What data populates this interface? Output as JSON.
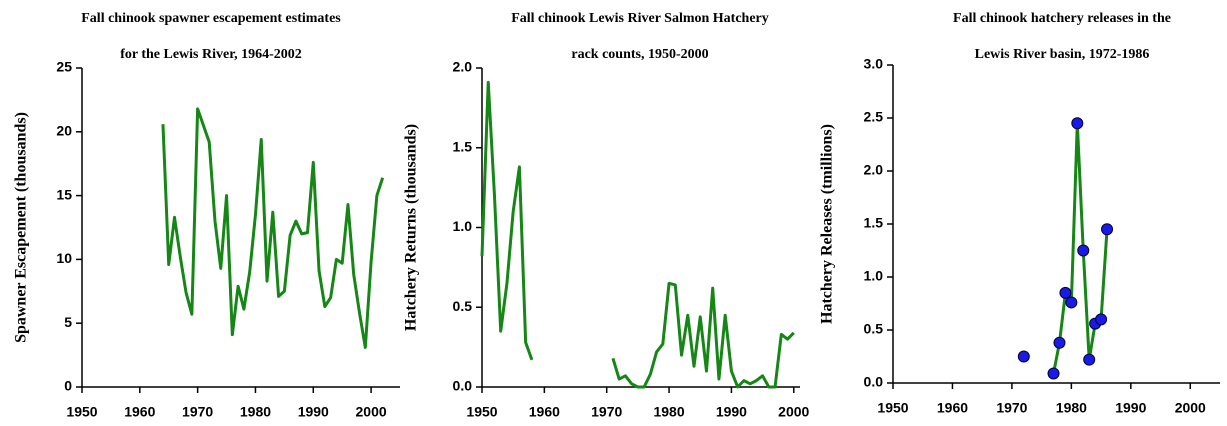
{
  "chart_data": [
    {
      "type": "line",
      "title": [
        "Fall chinook spawner escapement estimates",
        "for the Lewis River, 1964-2002"
      ],
      "ylabel": "Spawner Escapement (thousands)",
      "x": [
        1964,
        1965,
        1966,
        1967,
        1968,
        1969,
        1970,
        1971,
        1972,
        1973,
        1974,
        1975,
        1976,
        1977,
        1978,
        1979,
        1980,
        1981,
        1982,
        1983,
        1984,
        1985,
        1986,
        1987,
        1988,
        1989,
        1990,
        1991,
        1992,
        1993,
        1994,
        1995,
        1996,
        1997,
        1998,
        1999,
        2000,
        2001,
        2002
      ],
      "series": [
        {
          "color": "#168616",
          "values": [
            20.6,
            9.6,
            13.3,
            10.2,
            7.4,
            5.7,
            21.8,
            20.5,
            19.2,
            13.0,
            9.3,
            15.0,
            4.1,
            7.9,
            6.1,
            9.0,
            13.5,
            19.4,
            8.3,
            13.7,
            7.1,
            7.5,
            11.9,
            13.0,
            12.0,
            12.1,
            17.6,
            9.1,
            6.3,
            7.0,
            10.0,
            9.7,
            14.3,
            8.8,
            5.8,
            3.1,
            9.8,
            15.0,
            16.4
          ]
        }
      ],
      "xlim": [
        1950,
        2005
      ],
      "xticks": [
        1950,
        1960,
        1970,
        1980,
        1990,
        2000
      ],
      "ylim": [
        0,
        25
      ],
      "yticks": [
        0,
        5,
        10,
        15,
        20,
        25
      ]
    },
    {
      "type": "line",
      "title": [
        "Fall chinook Lewis River Salmon Hatchery",
        "rack counts, 1950-2000"
      ],
      "ylabel": "Hatchery Returns (thousands)",
      "x": [
        1950,
        1951,
        1952,
        1953,
        1954,
        1955,
        1956,
        1957,
        1958,
        1959,
        1960,
        1961,
        1962,
        1963,
        1964,
        1965,
        1966,
        1967,
        1968,
        1969,
        1970,
        1971,
        1972,
        1973,
        1974,
        1975,
        1976,
        1977,
        1978,
        1979,
        1980,
        1981,
        1982,
        1983,
        1984,
        1985,
        1986,
        1987,
        1988,
        1989,
        1990,
        1991,
        1992,
        1993,
        1994,
        1995,
        1996,
        1997,
        1998,
        1999,
        2000
      ],
      "series": [
        {
          "color": "#168616",
          "values": [
            0.82,
            1.91,
            1.2,
            0.35,
            0.65,
            1.1,
            1.38,
            0.28,
            0.17,
            null,
            null,
            null,
            null,
            null,
            null,
            null,
            null,
            null,
            null,
            null,
            null,
            0.18,
            0.05,
            0.07,
            0.02,
            0.0,
            0.0,
            0.08,
            0.22,
            0.27,
            0.65,
            0.64,
            0.2,
            0.45,
            0.13,
            0.44,
            0.1,
            0.62,
            0.05,
            0.45,
            0.1,
            0.0,
            0.04,
            0.02,
            0.04,
            0.07,
            0.0,
            0.0,
            0.33,
            0.3,
            0.34
          ]
        }
      ],
      "xlim": [
        1950,
        2001
      ],
      "xticks": [
        1950,
        1960,
        1970,
        1980,
        1990,
        2000
      ],
      "ylim": [
        0,
        2
      ],
      "yticks": [
        {
          "value": 0,
          "label": "0.0"
        },
        0.5,
        {
          "value": 1,
          "label": "1.0"
        },
        1.5,
        {
          "value": 2,
          "label": "2.0"
        }
      ]
    },
    {
      "type": "line",
      "title": [
        "Fall chinook hatchery releases in the",
        "Lewis River basin, 1972-1986"
      ],
      "ylabel": "Hatchery Releases (tmillions)",
      "x": [
        1972,
        1973,
        1974,
        1975,
        1976,
        1977,
        1978,
        1979,
        1980,
        1981,
        1982,
        1983,
        1984,
        1985,
        1986
      ],
      "series": [
        {
          "color": "#168616",
          "marker_color": "#1a1ae8",
          "values": [
            0.25,
            null,
            null,
            null,
            null,
            0.09,
            0.38,
            0.85,
            0.76,
            2.45,
            1.25,
            0.22,
            0.56,
            0.6,
            1.45
          ]
        }
      ],
      "markers": true,
      "xlim": [
        1950,
        2005
      ],
      "xticks": [
        1950,
        1960,
        1970,
        1980,
        1990,
        2000
      ],
      "ylim": [
        0,
        3
      ],
      "yticks": [
        {
          "value": 0,
          "label": "0.0"
        },
        0.5,
        {
          "value": 1,
          "label": "1.0"
        },
        1.5,
        {
          "value": 2,
          "label": "2.0"
        },
        2.5,
        {
          "value": 3,
          "label": "3.0"
        }
      ]
    }
  ]
}
